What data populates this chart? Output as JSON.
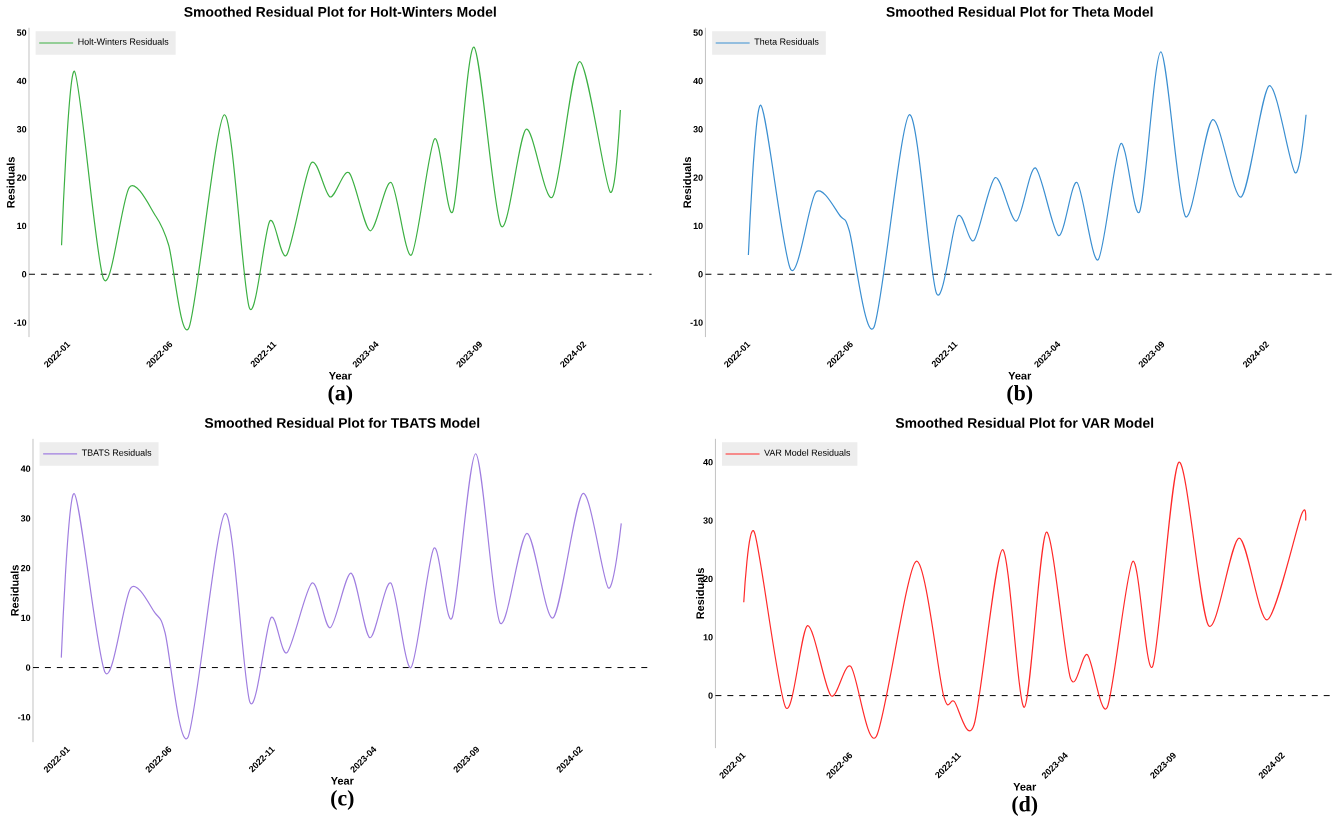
{
  "chart_data": [
    {
      "type": "line",
      "title": "Smoothed Residual Plot for Holt-Winters Model",
      "xlabel": "Year",
      "ylabel": "Residuals",
      "legend": "top left",
      "line_style": "solid",
      "marker": "none",
      "xlim": [
        "2021-11-07",
        "2024-05-13"
      ],
      "ylim": [
        -13,
        51
      ],
      "xticks": [
        "2022-01",
        "2022-06",
        "2022-11",
        "2023-04",
        "2023-09",
        "2024-02"
      ],
      "yticks": [
        -10,
        0,
        10,
        20,
        30,
        40,
        50
      ],
      "ref_lines": [
        {
          "axis": "y",
          "value": 0,
          "color": "#000000",
          "line_style": "dashed"
        }
      ],
      "annotations": [
        "(a)"
      ],
      "series": [
        {
          "name": "Holt-Winters Residuals",
          "color": "#3cb043",
          "x": [
            "2021-12-25",
            "2022-01-13",
            "2022-02-25",
            "2022-04-04",
            "2022-05-13",
            "2022-06-01",
            "2022-07-01",
            "2022-08-22",
            "2022-09-28",
            "2022-10-28",
            "2022-11-22",
            "2022-12-28",
            "2023-01-25",
            "2023-02-22",
            "2023-03-25",
            "2023-04-25",
            "2023-05-25",
            "2023-06-28",
            "2023-07-25",
            "2023-08-25",
            "2023-10-04",
            "2023-11-10",
            "2023-12-19",
            "2024-01-28",
            "2024-03-13",
            "2024-03-28"
          ],
          "values": [
            6,
            42,
            -1,
            18,
            12,
            6,
            -11,
            33,
            -7,
            11,
            4,
            23,
            16,
            21,
            9,
            19,
            4,
            28,
            13,
            47,
            10,
            30,
            16,
            44,
            17,
            34
          ]
        }
      ]
    },
    {
      "type": "line",
      "title": "Smoothed Residual Plot for Theta Model",
      "xlabel": "Year",
      "ylabel": "Residuals",
      "legend": "top left",
      "line_style": "solid",
      "marker": "none",
      "xlim": [
        "2021-11-02",
        "2024-05-12"
      ],
      "ylim": [
        -13,
        51
      ],
      "xticks": [
        "2022-01",
        "2022-06",
        "2022-11",
        "2023-04",
        "2023-09",
        "2024-02"
      ],
      "yticks": [
        -10,
        0,
        10,
        20,
        30,
        40,
        50
      ],
      "ref_lines": [
        {
          "axis": "y",
          "value": 0,
          "color": "#000000",
          "line_style": "dashed"
        }
      ],
      "annotations": [
        "(b)"
      ],
      "series": [
        {
          "name": "Theta Residuals",
          "color": "#3b8fd1",
          "x": [
            "2022-01-04",
            "2022-01-22",
            "2022-03-07",
            "2022-04-13",
            "2022-05-19",
            "2022-06-01",
            "2022-07-07",
            "2022-08-28",
            "2022-10-07",
            "2022-11-07",
            "2022-12-01",
            "2023-01-01",
            "2023-02-01",
            "2023-03-01",
            "2023-04-04",
            "2023-05-01",
            "2023-06-01",
            "2023-07-04",
            "2023-08-01",
            "2023-09-01",
            "2023-10-07",
            "2023-11-16",
            "2023-12-28",
            "2024-02-07",
            "2024-03-16",
            "2024-04-01"
          ],
          "values": [
            4,
            35,
            1,
            17,
            12,
            9,
            -11,
            33,
            -4,
            12,
            7,
            20,
            11,
            22,
            8,
            19,
            3,
            27,
            13,
            46,
            12,
            32,
            16,
            39,
            21,
            33
          ]
        }
      ]
    },
    {
      "type": "line",
      "title": "Smoothed Residual Plot for TBATS Model",
      "xlabel": "Year",
      "ylabel": "Residuals",
      "legend": "top left",
      "line_style": "solid",
      "marker": "none",
      "xlim": [
        "2021-11-13",
        "2024-05-19"
      ],
      "ylim": [
        -15,
        46
      ],
      "xticks": [
        "2022-01",
        "2022-06",
        "2022-11",
        "2023-04",
        "2023-09",
        "2024-02"
      ],
      "yticks": [
        -10,
        0,
        10,
        20,
        30,
        40
      ],
      "ref_lines": [
        {
          "axis": "y",
          "value": 0,
          "color": "#000000",
          "line_style": "dashed"
        }
      ],
      "annotations": [
        "(c)"
      ],
      "series": [
        {
          "name": "TBATS Residuals",
          "color": "#a07ee0",
          "x": [
            "2021-12-25",
            "2022-01-13",
            "2022-02-28",
            "2022-04-07",
            "2022-05-13",
            "2022-05-28",
            "2022-07-01",
            "2022-08-25",
            "2022-10-01",
            "2022-11-01",
            "2022-11-25",
            "2023-01-01",
            "2023-01-28",
            "2023-02-28",
            "2023-03-28",
            "2023-04-28",
            "2023-05-28",
            "2023-07-01",
            "2023-07-28",
            "2023-09-01",
            "2023-10-07",
            "2023-11-16",
            "2023-12-25",
            "2024-02-07",
            "2024-03-16",
            "2024-04-04"
          ],
          "values": [
            2,
            35,
            -1,
            16,
            11,
            7,
            -14,
            31,
            -7,
            10,
            3,
            17,
            8,
            19,
            6,
            17,
            0,
            24,
            10,
            43,
            9,
            27,
            10,
            35,
            16,
            29
          ]
        }
      ]
    },
    {
      "type": "line",
      "title": "Smoothed Residual Plot for VAR Model",
      "xlabel": "Year",
      "ylabel": "Residuals",
      "legend": "top left",
      "line_style": "solid",
      "marker": "none",
      "xlim": [
        "2021-11-25",
        "2024-04-16"
      ],
      "ylim": [
        -9,
        44
      ],
      "xticks": [
        "2022-01",
        "2022-06",
        "2022-11",
        "2023-04",
        "2023-09",
        "2024-02"
      ],
      "yticks": [
        0,
        10,
        20,
        30,
        40
      ],
      "ref_lines": [
        {
          "axis": "y",
          "value": 0,
          "color": "#000000",
          "line_style": "dashed"
        }
      ],
      "annotations": [
        "(d)"
      ],
      "series": [
        {
          "name": "VAR Model Residuals",
          "color": "#ff2a2a",
          "x": [
            "2022-01-04",
            "2022-01-19",
            "2022-03-04",
            "2022-04-04",
            "2022-05-07",
            "2022-06-04",
            "2022-07-10",
            "2022-09-04",
            "2022-10-13",
            "2022-10-28",
            "2022-11-25",
            "2023-01-04",
            "2023-02-04",
            "2023-03-07",
            "2023-04-10",
            "2023-05-04",
            "2023-06-01",
            "2023-07-07",
            "2023-08-04",
            "2023-09-10",
            "2023-10-22",
            "2023-12-04",
            "2024-01-13",
            "2024-03-01",
            "2024-03-07"
          ],
          "values": [
            16,
            28,
            -2,
            12,
            0,
            5,
            -7,
            23,
            0,
            -1,
            -5,
            25,
            -2,
            28,
            3,
            7,
            -2,
            23,
            5,
            40,
            12,
            27,
            13,
            31,
            30
          ]
        }
      ]
    }
  ]
}
